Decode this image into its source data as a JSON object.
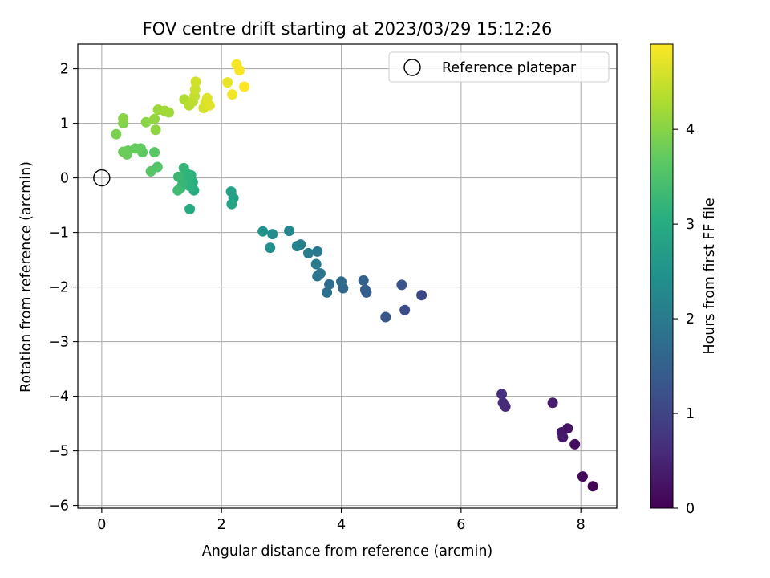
{
  "chart_data": {
    "type": "scatter",
    "title": "FOV centre drift starting at 2023/03/29 15:12:26",
    "xlabel": "Angular distance from reference (arcmin)",
    "ylabel": "Rotation from reference (arcmin)",
    "xlim": [
      -0.4,
      8.6
    ],
    "ylim": [
      -6.05,
      2.45
    ],
    "xticks": [
      0,
      2,
      4,
      6,
      8
    ],
    "xtick_labels": [
      "0",
      "2",
      "4",
      "6",
      "8"
    ],
    "yticks": [
      -6,
      -5,
      -4,
      -3,
      -2,
      -1,
      0,
      1,
      2
    ],
    "ytick_labels": [
      "−6",
      "−5",
      "−4",
      "−3",
      "−2",
      "−1",
      "0",
      "1",
      "2"
    ],
    "grid": true,
    "legend": {
      "position": "top-right",
      "entries": [
        "Reference platepar"
      ]
    },
    "reference_point": {
      "x": 0,
      "y": 0,
      "label": "Reference platepar"
    },
    "colorbar": {
      "label": "Hours from first FF file",
      "colormap": "viridis",
      "range": [
        0,
        4.9
      ],
      "ticks": [
        0,
        1,
        2,
        3,
        4
      ],
      "tick_labels": [
        "0",
        "1",
        "2",
        "3",
        "4"
      ]
    },
    "points": [
      {
        "x": 8.2,
        "y": -5.65,
        "c": 0.05
      },
      {
        "x": 8.03,
        "y": -5.47,
        "c": 0.1
      },
      {
        "x": 7.9,
        "y": -4.88,
        "c": 0.18
      },
      {
        "x": 7.78,
        "y": -4.59,
        "c": 0.25
      },
      {
        "x": 7.68,
        "y": -4.66,
        "c": 0.3
      },
      {
        "x": 7.7,
        "y": -4.75,
        "c": 0.35
      },
      {
        "x": 7.53,
        "y": -4.12,
        "c": 0.4
      },
      {
        "x": 6.74,
        "y": -4.19,
        "c": 0.55
      },
      {
        "x": 6.7,
        "y": -4.12,
        "c": 0.6
      },
      {
        "x": 6.68,
        "y": -3.96,
        "c": 0.65
      },
      {
        "x": 5.34,
        "y": -2.15,
        "c": 1.05
      },
      {
        "x": 5.06,
        "y": -2.42,
        "c": 1.15
      },
      {
        "x": 5.01,
        "y": -1.96,
        "c": 1.22
      },
      {
        "x": 4.74,
        "y": -2.55,
        "c": 1.3
      },
      {
        "x": 4.42,
        "y": -2.1,
        "c": 1.42
      },
      {
        "x": 4.4,
        "y": -2.05,
        "c": 1.48
      },
      {
        "x": 4.37,
        "y": -1.88,
        "c": 1.55
      },
      {
        "x": 4.03,
        "y": -2.02,
        "c": 1.62
      },
      {
        "x": 4.0,
        "y": -1.9,
        "c": 1.68
      },
      {
        "x": 3.8,
        "y": -1.95,
        "c": 1.75
      },
      {
        "x": 3.76,
        "y": -2.1,
        "c": 1.8
      },
      {
        "x": 3.65,
        "y": -1.75,
        "c": 1.86
      },
      {
        "x": 3.6,
        "y": -1.8,
        "c": 1.9
      },
      {
        "x": 3.6,
        "y": -1.35,
        "c": 1.95
      },
      {
        "x": 3.58,
        "y": -1.58,
        "c": 2.0
      },
      {
        "x": 3.45,
        "y": -1.38,
        "c": 2.05
      },
      {
        "x": 3.32,
        "y": -1.22,
        "c": 2.12
      },
      {
        "x": 3.26,
        "y": -1.25,
        "c": 2.18
      },
      {
        "x": 3.13,
        "y": -0.97,
        "c": 2.25
      },
      {
        "x": 2.85,
        "y": -1.03,
        "c": 2.35
      },
      {
        "x": 2.81,
        "y": -1.28,
        "c": 2.42
      },
      {
        "x": 2.69,
        "y": -0.98,
        "c": 2.5
      },
      {
        "x": 2.2,
        "y": -0.37,
        "c": 2.75
      },
      {
        "x": 2.16,
        "y": -0.25,
        "c": 2.8
      },
      {
        "x": 2.17,
        "y": -0.48,
        "c": 2.85
      },
      {
        "x": 1.47,
        "y": -0.57,
        "c": 2.95
      },
      {
        "x": 1.54,
        "y": -0.23,
        "c": 3.0
      },
      {
        "x": 1.52,
        "y": -0.08,
        "c": 3.05
      },
      {
        "x": 1.49,
        "y": 0.05,
        "c": 3.1
      },
      {
        "x": 1.47,
        "y": -0.15,
        "c": 3.12
      },
      {
        "x": 1.45,
        "y": 0.0,
        "c": 3.15
      },
      {
        "x": 1.42,
        "y": 0.08,
        "c": 3.18
      },
      {
        "x": 1.37,
        "y": 0.18,
        "c": 3.2
      },
      {
        "x": 1.35,
        "y": -0.1,
        "c": 3.22
      },
      {
        "x": 1.32,
        "y": -0.18,
        "c": 3.25
      },
      {
        "x": 1.28,
        "y": 0.02,
        "c": 3.3
      },
      {
        "x": 1.27,
        "y": -0.23,
        "c": 3.35
      },
      {
        "x": 0.93,
        "y": 0.2,
        "c": 3.55
      },
      {
        "x": 0.82,
        "y": 0.12,
        "c": 3.58
      },
      {
        "x": 0.88,
        "y": 0.47,
        "c": 3.62
      },
      {
        "x": 0.68,
        "y": 0.47,
        "c": 3.66
      },
      {
        "x": 0.65,
        "y": 0.54,
        "c": 3.7
      },
      {
        "x": 0.56,
        "y": 0.54,
        "c": 3.72
      },
      {
        "x": 0.44,
        "y": 0.5,
        "c": 3.74
      },
      {
        "x": 0.42,
        "y": 0.43,
        "c": 3.76
      },
      {
        "x": 0.36,
        "y": 0.48,
        "c": 3.78
      },
      {
        "x": 0.24,
        "y": 0.8,
        "c": 3.9
      },
      {
        "x": 0.36,
        "y": 1.0,
        "c": 3.95
      },
      {
        "x": 0.36,
        "y": 1.09,
        "c": 4.0
      },
      {
        "x": 0.74,
        "y": 1.02,
        "c": 4.02
      },
      {
        "x": 0.9,
        "y": 0.88,
        "c": 4.05
      },
      {
        "x": 0.88,
        "y": 1.08,
        "c": 4.08
      },
      {
        "x": 0.94,
        "y": 1.25,
        "c": 4.15
      },
      {
        "x": 1.05,
        "y": 1.23,
        "c": 4.18
      },
      {
        "x": 1.12,
        "y": 1.2,
        "c": 4.2
      },
      {
        "x": 1.38,
        "y": 1.44,
        "c": 4.3
      },
      {
        "x": 1.46,
        "y": 1.33,
        "c": 4.35
      },
      {
        "x": 1.52,
        "y": 1.4,
        "c": 4.4
      },
      {
        "x": 1.55,
        "y": 1.5,
        "c": 4.45
      },
      {
        "x": 1.56,
        "y": 1.62,
        "c": 4.5
      },
      {
        "x": 1.57,
        "y": 1.76,
        "c": 4.55
      },
      {
        "x": 1.7,
        "y": 1.28,
        "c": 4.6
      },
      {
        "x": 1.73,
        "y": 1.38,
        "c": 4.62
      },
      {
        "x": 1.76,
        "y": 1.46,
        "c": 4.65
      },
      {
        "x": 1.8,
        "y": 1.33,
        "c": 4.68
      },
      {
        "x": 2.1,
        "y": 1.75,
        "c": 4.75
      },
      {
        "x": 2.18,
        "y": 1.53,
        "c": 4.8
      },
      {
        "x": 2.25,
        "y": 2.08,
        "c": 4.83
      },
      {
        "x": 2.3,
        "y": 1.97,
        "c": 4.86
      },
      {
        "x": 2.38,
        "y": 1.67,
        "c": 4.9
      }
    ]
  }
}
